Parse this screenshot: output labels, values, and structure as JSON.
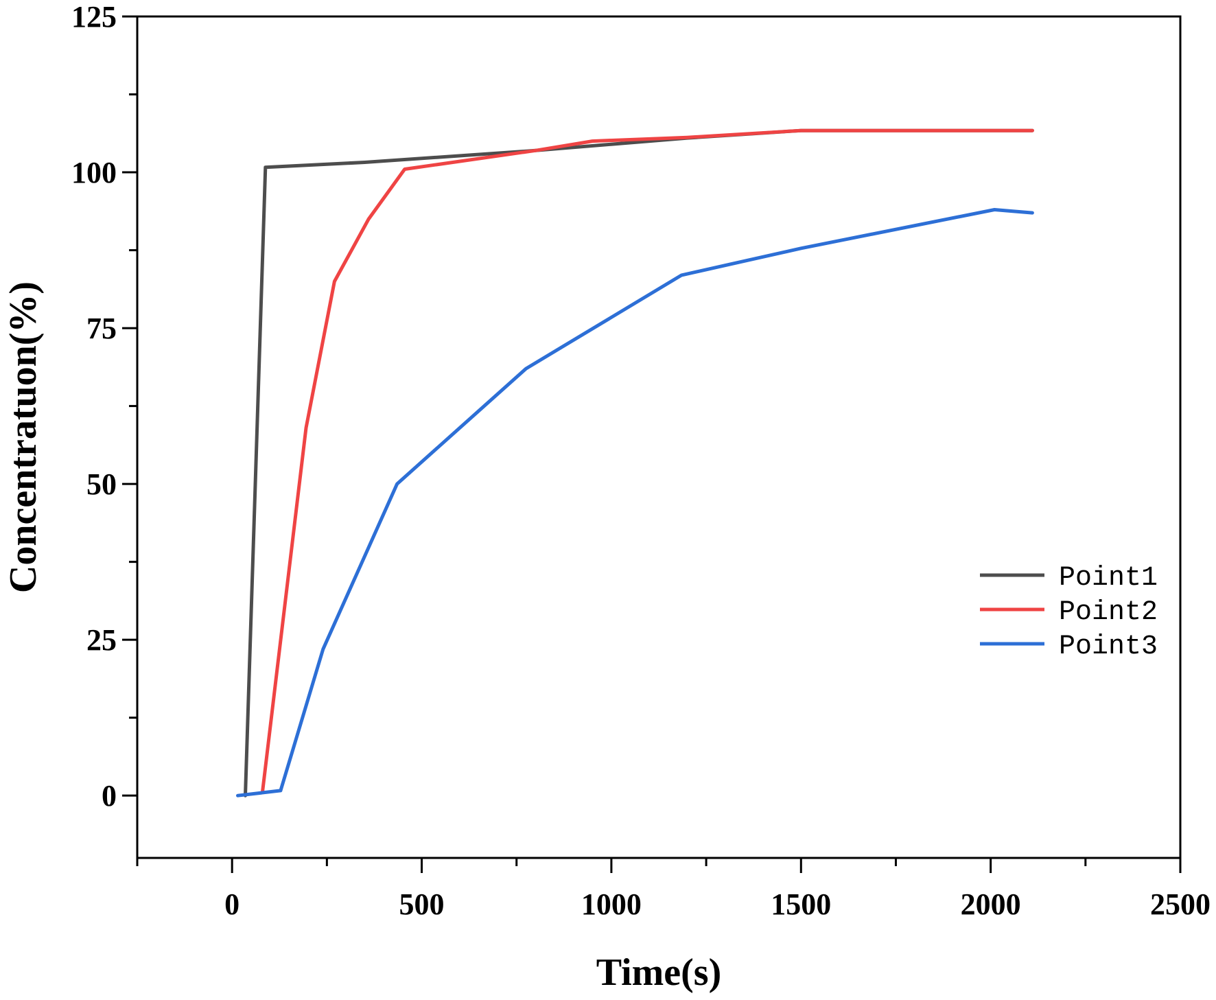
{
  "chart_data": {
    "type": "line",
    "xlabel": "Time(s)",
    "ylabel": "Concentratuon(%)",
    "xlim": [
      -250,
      2500
    ],
    "ylim": [
      -10,
      125
    ],
    "x_ticks": [
      0,
      500,
      1000,
      1500,
      2000,
      2500
    ],
    "y_ticks": [
      0,
      25,
      50,
      75,
      100,
      125
    ],
    "grid": false,
    "legend_position": "right",
    "series": [
      {
        "name": "Point1",
        "color": "#4d4d4d",
        "x": [
          35,
          88,
          350,
          800,
          1200,
          1500,
          2110
        ],
        "y": [
          0,
          100.8,
          101.6,
          103.5,
          105.5,
          106.7,
          106.7
        ]
      },
      {
        "name": "Point2",
        "color": "#ef4444",
        "x": [
          80,
          195,
          270,
          360,
          455,
          800,
          950,
          1200,
          1500,
          2110
        ],
        "y": [
          0.5,
          59,
          82.5,
          92.5,
          100.5,
          103.5,
          105,
          105.6,
          106.7,
          106.7
        ]
      },
      {
        "name": "Point3",
        "color": "#2d6fd6",
        "x": [
          15,
          128,
          240,
          435,
          775,
          1185,
          1500,
          2010,
          2110
        ],
        "y": [
          0,
          0.8,
          23.5,
          50,
          68.5,
          83.5,
          87.8,
          94,
          93.5
        ]
      }
    ]
  }
}
